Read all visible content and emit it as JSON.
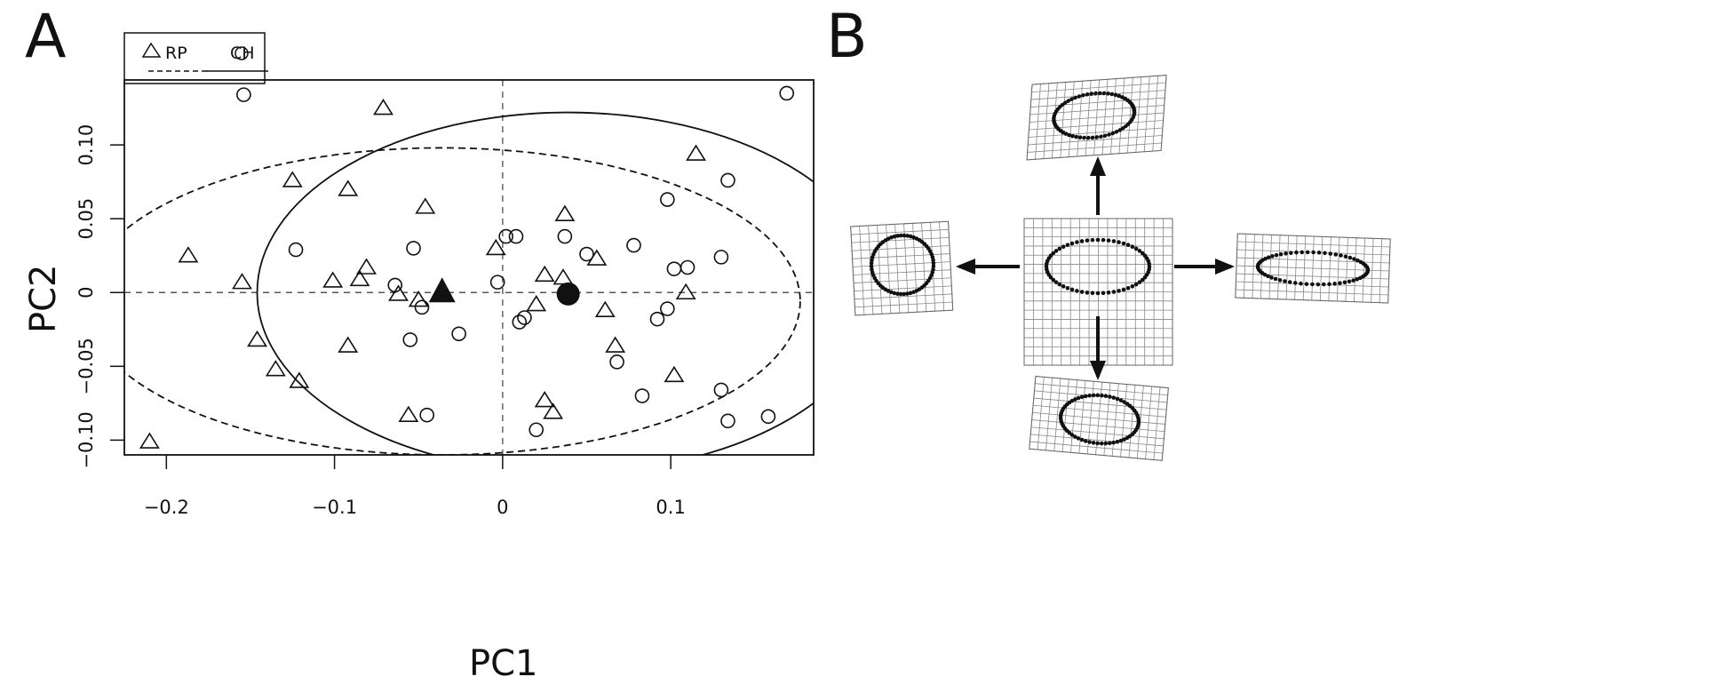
{
  "panels": {
    "a_label": "A",
    "b_label": "B"
  },
  "legend": {
    "entries": [
      {
        "label": "RP",
        "marker": "triangle-open",
        "line": "dashed"
      },
      {
        "label": "CH",
        "marker": "circle-open",
        "line": "solid"
      }
    ],
    "placement": "top-left-outside"
  },
  "chart_data": {
    "type": "scatter",
    "xlabel": "PC1",
    "ylabel": "PC2",
    "xlim": [
      -0.225,
      0.185
    ],
    "ylim": [
      -0.11,
      0.144
    ],
    "xticks": [
      "-0.2",
      "-0.1",
      "0",
      "0.1"
    ],
    "xtick_values": [
      -0.2,
      -0.1,
      0,
      0.1
    ],
    "yticks": [
      "-0.10",
      "-0.05",
      "0",
      "0.05",
      "0.10"
    ],
    "ytick_values": [
      -0.1,
      -0.05,
      0,
      0.05,
      0.1
    ],
    "grid": false,
    "reference_lines": {
      "x": 0,
      "y": 0,
      "style": "dashed"
    },
    "series": [
      {
        "name": "RP",
        "marker": "triangle-open",
        "ellipse": "dashed",
        "mean": [
          -0.036,
          0.0
        ],
        "ellipse_center": [
          -0.036,
          -0.006
        ],
        "ellipse_radii": [
          0.213,
          0.104
        ],
        "points": [
          [
            -0.071,
            0.125
          ],
          [
            0.115,
            0.094
          ],
          [
            -0.125,
            0.076
          ],
          [
            -0.092,
            0.07
          ],
          [
            -0.046,
            0.058
          ],
          [
            0.037,
            0.053
          ],
          [
            -0.187,
            0.025
          ],
          [
            -0.004,
            0.03
          ],
          [
            -0.081,
            0.017
          ],
          [
            0.056,
            0.023
          ],
          [
            -0.155,
            0.007
          ],
          [
            -0.101,
            0.008
          ],
          [
            -0.085,
            0.009
          ],
          [
            0.025,
            0.012
          ],
          [
            0.036,
            0.01
          ],
          [
            -0.062,
            -0.001
          ],
          [
            -0.05,
            -0.005
          ],
          [
            0.02,
            -0.008
          ],
          [
            0.109,
            0.0
          ],
          [
            0.061,
            -0.012
          ],
          [
            -0.146,
            -0.032
          ],
          [
            -0.092,
            -0.036
          ],
          [
            0.067,
            -0.036
          ],
          [
            -0.135,
            -0.052
          ],
          [
            -0.121,
            -0.06
          ],
          [
            0.102,
            -0.056
          ],
          [
            -0.056,
            -0.083
          ],
          [
            0.025,
            -0.073
          ],
          [
            0.03,
            -0.081
          ],
          [
            -0.21,
            -0.101
          ]
        ]
      },
      {
        "name": "CH",
        "marker": "circle-open",
        "ellipse": "solid",
        "mean": [
          0.039,
          -0.001
        ],
        "ellipse_center": [
          0.039,
          0.0
        ],
        "ellipse_radii": [
          0.185,
          0.122
        ],
        "points": [
          [
            -0.154,
            0.134
          ],
          [
            0.169,
            0.135
          ],
          [
            0.134,
            0.076
          ],
          [
            0.098,
            0.063
          ],
          [
            -0.123,
            0.029
          ],
          [
            -0.053,
            0.03
          ],
          [
            0.002,
            0.038
          ],
          [
            0.008,
            0.038
          ],
          [
            0.037,
            0.038
          ],
          [
            0.078,
            0.032
          ],
          [
            0.05,
            0.026
          ],
          [
            0.11,
            0.017
          ],
          [
            0.102,
            0.016
          ],
          [
            0.13,
            0.024
          ],
          [
            -0.064,
            0.005
          ],
          [
            -0.003,
            0.007
          ],
          [
            -0.048,
            -0.01
          ],
          [
            0.013,
            -0.017
          ],
          [
            0.01,
            -0.02
          ],
          [
            0.098,
            -0.011
          ],
          [
            0.092,
            -0.018
          ],
          [
            -0.026,
            -0.028
          ],
          [
            -0.055,
            -0.032
          ],
          [
            0.068,
            -0.047
          ],
          [
            0.083,
            -0.07
          ],
          [
            0.13,
            -0.066
          ],
          [
            -0.045,
            -0.083
          ],
          [
            0.02,
            -0.093
          ],
          [
            0.134,
            -0.087
          ],
          [
            0.158,
            -0.084
          ]
        ]
      }
    ]
  },
  "diagram": {
    "center": "mean shape grid",
    "directions": [
      "up",
      "down",
      "left",
      "right"
    ]
  }
}
